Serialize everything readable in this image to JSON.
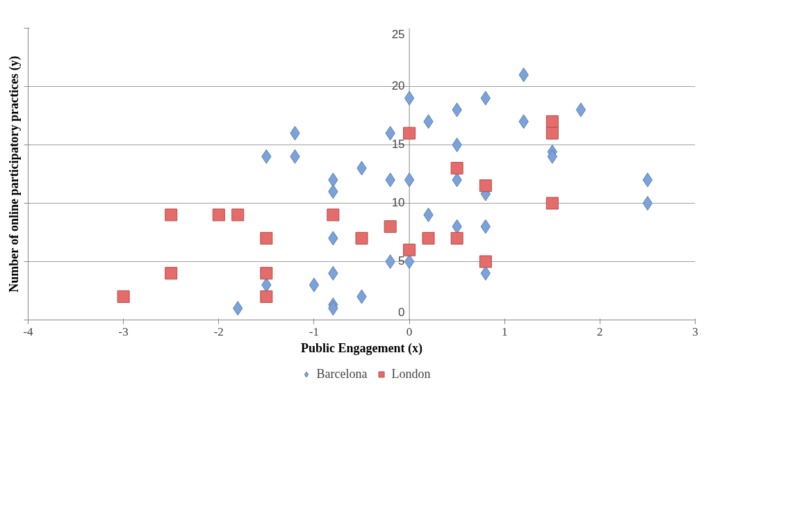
{
  "chart_data": {
    "type": "scatter",
    "xlabel": "Public Engagement (x)",
    "ylabel": "Number of online participatory practices (y)",
    "xlim": [
      -4,
      3
    ],
    "xticks": [
      -4,
      -3,
      -2,
      -1,
      0,
      1,
      2,
      3
    ],
    "ylim": [
      0,
      25
    ],
    "yticks": [
      0,
      5,
      10,
      15,
      20,
      25
    ],
    "grid": "y",
    "legend": "bottom",
    "series": [
      {
        "name": "Barcelona",
        "color": "#7ba3d9",
        "marker": "diamond",
        "x": [
          -1.8,
          -1.5,
          -1.5,
          -1.2,
          -1.2,
          -1,
          -0.8,
          -0.8,
          -0.8,
          -0.8,
          -0.8,
          -0.8,
          -0.5,
          -0.5,
          -0.2,
          -0.2,
          -0.2,
          0,
          0,
          0,
          0.2,
          0.2,
          0.5,
          0.5,
          0.5,
          0.5,
          0.8,
          0.8,
          0.8,
          0.8,
          1.2,
          1.2,
          1.5,
          1.5,
          1.8,
          2.5,
          2.5
        ],
        "values": [
          1,
          14,
          3,
          16,
          14,
          3,
          12,
          11,
          7,
          4,
          1.3,
          1,
          13,
          2,
          16,
          12,
          5,
          19,
          12,
          5,
          17,
          9,
          18,
          15,
          12,
          8,
          19,
          10.8,
          8,
          4,
          21,
          17,
          14.4,
          14,
          18,
          12,
          10
        ]
      },
      {
        "name": "London",
        "color": "#e46c6a",
        "marker": "square",
        "x": [
          -3,
          -2.5,
          -2.5,
          -2,
          -1.8,
          -1.5,
          -1.5,
          -1.5,
          -0.8,
          -0.5,
          -0.2,
          0,
          0,
          0.2,
          0.5,
          0.5,
          0.8,
          0.8,
          1.5,
          1.5,
          1.5
        ],
        "values": [
          2,
          9,
          4,
          9,
          9,
          7,
          4,
          2,
          9,
          7,
          8,
          16,
          6,
          7,
          13,
          7,
          11.5,
          5,
          17,
          16,
          10
        ]
      }
    ]
  }
}
